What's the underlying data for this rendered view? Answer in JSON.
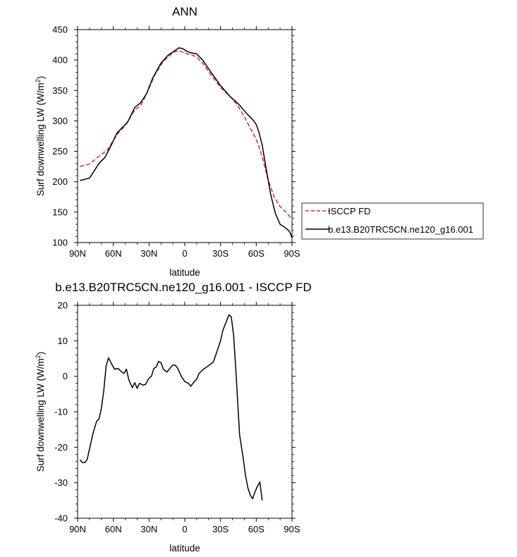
{
  "chart_data": [
    {
      "type": "line",
      "title": "ANN",
      "xlabel": "latitude",
      "ylabel": "Surf downwelling LW (W/m²)",
      "ylabel_main": "Surf downwelling LW (W/m",
      "ylabel_sup": "2",
      "ylabel_close": ")",
      "xlim": [
        90,
        -90
      ],
      "ylim": [
        100,
        450
      ],
      "x_tick_values": [
        90,
        60,
        30,
        0,
        -30,
        -60,
        -90
      ],
      "x_tick_labels": [
        "90N",
        "60N",
        "30N",
        "0",
        "30S",
        "60S",
        "90S"
      ],
      "y_tick_values": [
        100,
        150,
        200,
        250,
        300,
        350,
        400,
        450
      ],
      "y_tick_labels": [
        "100",
        "150",
        "200",
        "250",
        "300",
        "350",
        "400",
        "450"
      ],
      "legend_position": "right, outside plot",
      "series": [
        {
          "name": "ISCCP FD",
          "color": "#e8251f",
          "dash": "dashed",
          "points": [
            [
              88,
              225
            ],
            [
              80,
              229
            ],
            [
              72,
              242
            ],
            [
              65,
              252
            ],
            [
              60,
              268
            ],
            [
              55,
              282
            ],
            [
              50,
              292
            ],
            [
              42,
              318
            ],
            [
              37,
              325
            ],
            [
              32,
              345
            ],
            [
              25,
              376
            ],
            [
              18,
              398
            ],
            [
              10,
              412
            ],
            [
              5,
              416
            ],
            [
              0,
              411
            ],
            [
              -5,
              409
            ],
            [
              -10,
              405
            ],
            [
              -15,
              395
            ],
            [
              -20,
              381
            ],
            [
              -30,
              355
            ],
            [
              -40,
              336
            ],
            [
              -45,
              323
            ],
            [
              -50,
              307
            ],
            [
              -55,
              288
            ],
            [
              -60,
              270
            ],
            [
              -65,
              241
            ],
            [
              -70,
              203
            ],
            [
              -75,
              175
            ],
            [
              -80,
              159
            ],
            [
              -85,
              150
            ],
            [
              -90,
              138
            ]
          ]
        },
        {
          "name": "b.e13.B20TRC5CN.ne120_g16.001",
          "color": "#000000",
          "dash": "solid",
          "points": [
            [
              88,
              202
            ],
            [
              80,
              206
            ],
            [
              72,
              230
            ],
            [
              67,
              240
            ],
            [
              63,
              255
            ],
            [
              57,
              280
            ],
            [
              53,
              288
            ],
            [
              48,
              298
            ],
            [
              42,
              322
            ],
            [
              37,
              330
            ],
            [
              32,
              345
            ],
            [
              27,
              370
            ],
            [
              20,
              395
            ],
            [
              14,
              408
            ],
            [
              8,
              416
            ],
            [
              5,
              420
            ],
            [
              2,
              419
            ],
            [
              -2,
              414
            ],
            [
              -5,
              412
            ],
            [
              -10,
              410
            ],
            [
              -15,
              400
            ],
            [
              -22,
              380
            ],
            [
              -30,
              358
            ],
            [
              -38,
              340
            ],
            [
              -45,
              328
            ],
            [
              -52,
              312
            ],
            [
              -57,
              302
            ],
            [
              -60,
              294
            ],
            [
              -62,
              283
            ],
            [
              -65,
              260
            ],
            [
              -68,
              225
            ],
            [
              -72,
              180
            ],
            [
              -76,
              148
            ],
            [
              -80,
              130
            ],
            [
              -84,
              125
            ],
            [
              -88,
              118
            ],
            [
              -90,
              108
            ]
          ]
        }
      ]
    },
    {
      "type": "line",
      "title": "b.e13.B20TRC5CN.ne120_g16.001 - ISCCP FD",
      "xlabel": "latitude",
      "ylabel": "Surf downwelling LW (W/m²)",
      "ylabel_main": "Surf downwelling LW (W/m",
      "ylabel_sup": "2",
      "ylabel_close": ")",
      "xlim": [
        90,
        -90
      ],
      "ylim": [
        -40,
        20
      ],
      "x_tick_values": [
        90,
        60,
        30,
        0,
        -30,
        -60,
        -90
      ],
      "x_tick_labels": [
        "90N",
        "60N",
        "30N",
        "0",
        "30S",
        "60S",
        "90S"
      ],
      "y_tick_values": [
        -40,
        -30,
        -20,
        -10,
        0,
        10,
        20
      ],
      "y_tick_labels": [
        "-40",
        "-30",
        "-20",
        "-10",
        "0",
        "10",
        "20"
      ],
      "series": [
        {
          "color": "#000000",
          "dash": "solid",
          "points": [
            [
              88,
              -23.5
            ],
            [
              86,
              -24.3
            ],
            [
              84,
              -24.3
            ],
            [
              82,
              -23.5
            ],
            [
              79,
              -19
            ],
            [
              77,
              -16
            ],
            [
              74,
              -12.7
            ],
            [
              72,
              -12
            ],
            [
              70,
              -9
            ],
            [
              68,
              -4
            ],
            [
              66,
              3
            ],
            [
              64,
              5.2
            ],
            [
              62,
              3.8
            ],
            [
              59,
              2
            ],
            [
              56,
              2.2
            ],
            [
              53,
              1.2
            ],
            [
              51,
              0.8
            ],
            [
              49,
              2
            ],
            [
              47,
              -1
            ],
            [
              44,
              -3.2
            ],
            [
              42,
              -1.8
            ],
            [
              40,
              -3.4
            ],
            [
              38,
              -2
            ],
            [
              35,
              -2.5
            ],
            [
              33,
              -2.3
            ],
            [
              30,
              -0.5
            ],
            [
              28,
              0
            ],
            [
              26,
              2.2
            ],
            [
              24,
              2.6
            ],
            [
              22,
              4.2
            ],
            [
              20,
              3.8
            ],
            [
              18,
              2
            ],
            [
              15,
              1.2
            ],
            [
              13,
              2
            ],
            [
              10,
              3.2
            ],
            [
              8,
              3.1
            ],
            [
              6,
              2.3
            ],
            [
              3,
              0
            ],
            [
              0,
              -1.5
            ],
            [
              -3,
              -2
            ],
            [
              -5,
              -2.8
            ],
            [
              -8,
              -1.5
            ],
            [
              -10,
              -0.8
            ],
            [
              -12,
              0.8
            ],
            [
              -15,
              1.8
            ],
            [
              -20,
              3
            ],
            [
              -24,
              4
            ],
            [
              -27,
              7
            ],
            [
              -30,
              10
            ],
            [
              -32,
              13
            ],
            [
              -35,
              15.5
            ],
            [
              -37,
              17.3
            ],
            [
              -39,
              16.8
            ],
            [
              -41,
              11.5
            ],
            [
              -43,
              1
            ],
            [
              -46,
              -16.5
            ],
            [
              -49,
              -23
            ],
            [
              -51,
              -28
            ],
            [
              -53,
              -31.5
            ],
            [
              -55,
              -33.5
            ],
            [
              -57,
              -34.5
            ],
            [
              -59,
              -32.5
            ],
            [
              -61,
              -31
            ],
            [
              -63,
              -29.8
            ],
            [
              -65,
              -35
            ]
          ]
        }
      ]
    }
  ]
}
